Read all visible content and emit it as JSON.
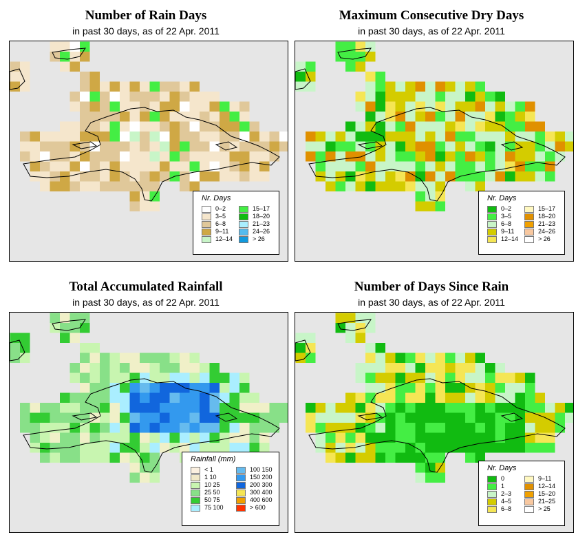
{
  "panels": [
    {
      "key": "rain-days",
      "title": "Number of Rain Days",
      "subtitle": "in past 30 days, as of  22 Apr. 2011",
      "legend_title": "Nr. Days",
      "palette": [
        "#ffffff",
        "#f5e6cc",
        "#e0c89a",
        "#cfa845",
        "#c8f5c8",
        "#44ee44",
        "#11bb11",
        "#aaeeff",
        "#55bbee",
        "#1199dd"
      ],
      "legend": [
        {
          "label": "0–2",
          "color": "#ffffff"
        },
        {
          "label": "3–5",
          "color": "#f5e6cc"
        },
        {
          "label": "6–8",
          "color": "#e0c89a"
        },
        {
          "label": "9–11",
          "color": "#cfa845"
        },
        {
          "label": "12–14",
          "color": "#c8f5c8"
        },
        {
          "label": "15–17",
          "color": "#44ee44"
        },
        {
          "label": "18–20",
          "color": "#11bb11"
        },
        {
          "label": "21–23",
          "color": "#aaeeff"
        },
        {
          "label": "24–26",
          "color": "#55bbee"
        },
        {
          "label": "> 26",
          "color": "#1199dd"
        }
      ]
    },
    {
      "key": "dry-days",
      "title": "Maximum Consecutive Dry Days",
      "subtitle": "in past 30 days, as of  22 Apr. 2011",
      "legend_title": "Nr. Days",
      "palette": [
        "#11bb11",
        "#44ee44",
        "#c8f5c8",
        "#d4cc00",
        "#f5e655",
        "#fff8c0",
        "#e09000",
        "#f0a000",
        "#f8c8a0",
        "#ffffff"
      ],
      "legend": [
        {
          "label": "0–2",
          "color": "#11bb11"
        },
        {
          "label": "3–5",
          "color": "#44ee44"
        },
        {
          "label": "6–8",
          "color": "#c8f5c8"
        },
        {
          "label": "9–11",
          "color": "#d4cc00"
        },
        {
          "label": "12–14",
          "color": "#f5e655"
        },
        {
          "label": "15–17",
          "color": "#fff8c0"
        },
        {
          "label": "18–20",
          "color": "#e09000"
        },
        {
          "label": "21–23",
          "color": "#f0a000"
        },
        {
          "label": "24–26",
          "color": "#f8c8a0"
        },
        {
          "label": "> 26",
          "color": "#ffffff"
        }
      ]
    },
    {
      "key": "rainfall",
      "title": "Total Accumulated Rainfall",
      "subtitle": "in past 30 days, as of  22 Apr. 2011",
      "legend_title": "Rainfall (mm)",
      "palette": [
        "#f8e8d0",
        "#f0f0c8",
        "#c8f5b0",
        "#88e088",
        "#33cc33",
        "#aaeeff",
        "#66bbee",
        "#3399ee",
        "#1166dd",
        "#f5e655",
        "#f0a000",
        "#ff3300"
      ],
      "legend": [
        {
          "label": "< 1",
          "color": "#fbf0e0"
        },
        {
          "label": "1    10",
          "color": "#f0e8c8"
        },
        {
          "label": "10    25",
          "color": "#c8f5b0"
        },
        {
          "label": "25    50",
          "color": "#88e088"
        },
        {
          "label": "50    75",
          "color": "#33cc33"
        },
        {
          "label": "75   100",
          "color": "#aaeeff"
        },
        {
          "label": "100  150",
          "color": "#66bbee"
        },
        {
          "label": "150  200",
          "color": "#3399ee"
        },
        {
          "label": "200  300",
          "color": "#1166dd"
        },
        {
          "label": "300  400",
          "color": "#f5e655"
        },
        {
          "label": "400  600",
          "color": "#f0a000"
        },
        {
          "label": "> 600",
          "color": "#ff3300"
        }
      ]
    },
    {
      "key": "since-rain",
      "title": "Number of Days Since Rain",
      "subtitle": "in past 30 days, as of  22 Apr. 2011",
      "legend_title": "Nr. Days",
      "palette": [
        "#11bb11",
        "#44ee44",
        "#c8f5c8",
        "#d4cc00",
        "#f5e655",
        "#fff8c0",
        "#e09000",
        "#f0a000",
        "#f8c8a0",
        "#ffffff"
      ],
      "legend": [
        {
          "label": "0",
          "color": "#11bb11"
        },
        {
          "label": "1",
          "color": "#44ee44"
        },
        {
          "label": "2–3",
          "color": "#c8f5c8"
        },
        {
          "label": "4–5",
          "color": "#d4cc00"
        },
        {
          "label": "6–8",
          "color": "#f5e655"
        },
        {
          "label": "9–11",
          "color": "#fff8c0"
        },
        {
          "label": "12–14",
          "color": "#e09000"
        },
        {
          "label": "15–20",
          "color": "#f0a000"
        },
        {
          "label": "21–25",
          "color": "#f8c8a0"
        },
        {
          "label": "> 25",
          "color": "#ffffff"
        }
      ]
    }
  ],
  "colors": {
    "map_background": "#e6e6e6",
    "coastline": "#000000"
  }
}
